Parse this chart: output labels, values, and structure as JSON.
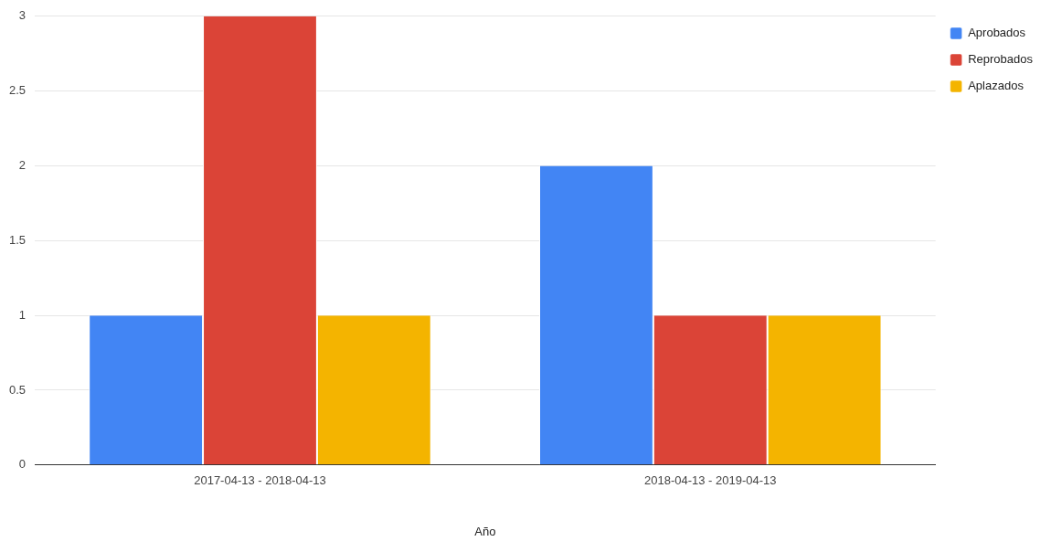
{
  "chart_data": {
    "type": "bar",
    "xlabel": "Año",
    "categories": [
      "2017-04-13 - 2018-04-13",
      "2018-04-13 - 2019-04-13"
    ],
    "series": [
      {
        "name": "Aprobados",
        "color": "#4285f4",
        "values": [
          1,
          2
        ]
      },
      {
        "name": "Reprobados",
        "color": "#db4437",
        "values": [
          3,
          1
        ]
      },
      {
        "name": "Aplazados",
        "color": "#f4b400",
        "values": [
          1,
          1
        ]
      }
    ],
    "ylim": [
      0,
      3
    ],
    "yticks": [
      0,
      0.5,
      1,
      1.5,
      2,
      2.5,
      3
    ],
    "grid": "y",
    "legend": "top right"
  }
}
